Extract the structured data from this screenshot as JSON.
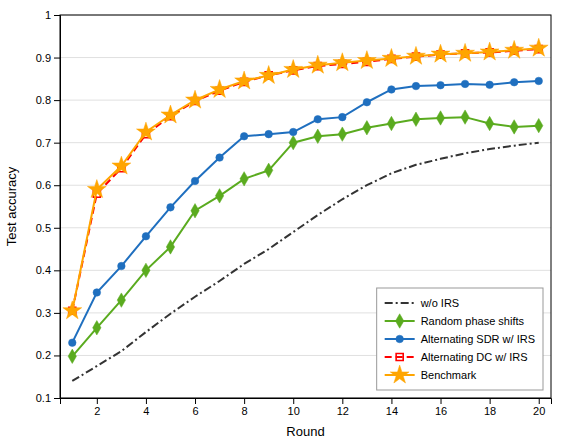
{
  "chart_data": {
    "type": "line",
    "x": [
      1,
      2,
      3,
      4,
      5,
      6,
      7,
      8,
      9,
      10,
      11,
      12,
      13,
      14,
      15,
      16,
      17,
      18,
      19,
      20
    ],
    "series": [
      {
        "name": "w/o IRS",
        "color": "#333333",
        "marker": "none",
        "line_style": "dashdot",
        "values": [
          0.14,
          0.175,
          0.21,
          0.255,
          0.298,
          0.338,
          0.375,
          0.415,
          0.45,
          0.49,
          0.53,
          0.567,
          0.6,
          0.628,
          0.648,
          0.662,
          0.675,
          0.685,
          0.693,
          0.7
        ]
      },
      {
        "name": "Random phase shifts",
        "color": "#5AAB1F",
        "marker": "diamond",
        "line_style": "solid",
        "values": [
          0.198,
          0.265,
          0.33,
          0.4,
          0.455,
          0.54,
          0.575,
          0.615,
          0.635,
          0.7,
          0.715,
          0.72,
          0.735,
          0.745,
          0.755,
          0.758,
          0.76,
          0.745,
          0.737,
          0.74
        ]
      },
      {
        "name": "Alternating SDR w/ IRS",
        "color": "#1F6FBF",
        "marker": "circle",
        "line_style": "solid",
        "values": [
          0.23,
          0.348,
          0.41,
          0.48,
          0.548,
          0.61,
          0.665,
          0.715,
          0.72,
          0.725,
          0.755,
          0.76,
          0.795,
          0.825,
          0.833,
          0.835,
          0.838,
          0.836,
          0.842,
          0.845
        ]
      },
      {
        "name": "Alternating DC w/ IRS",
        "color": "#FF0000",
        "marker": "square",
        "line_style": "dashed",
        "values": [
          0.305,
          0.58,
          0.64,
          0.72,
          0.762,
          0.798,
          0.822,
          0.843,
          0.858,
          0.87,
          0.88,
          0.885,
          0.89,
          0.897,
          0.902,
          0.907,
          0.91,
          0.912,
          0.916,
          0.92
        ]
      },
      {
        "name": "Benchmark",
        "color": "#FFA500",
        "marker": "star",
        "line_style": "solid",
        "values": [
          0.305,
          0.59,
          0.645,
          0.725,
          0.765,
          0.8,
          0.825,
          0.845,
          0.858,
          0.872,
          0.882,
          0.888,
          0.893,
          0.898,
          0.903,
          0.908,
          0.91,
          0.913,
          0.917,
          0.922
        ]
      }
    ],
    "xlabel": "Round",
    "ylabel": "Test accuracy",
    "xlim": [
      0.5,
      20.5
    ],
    "ylim": [
      0.1,
      1.0
    ],
    "xticks": [
      2,
      4,
      6,
      8,
      10,
      12,
      14,
      16,
      18,
      20
    ],
    "yticks": [
      0.1,
      0.2,
      0.3,
      0.4,
      0.5,
      0.6,
      0.7,
      0.8,
      0.9,
      1
    ],
    "grid": "y",
    "legend": "lower right"
  }
}
